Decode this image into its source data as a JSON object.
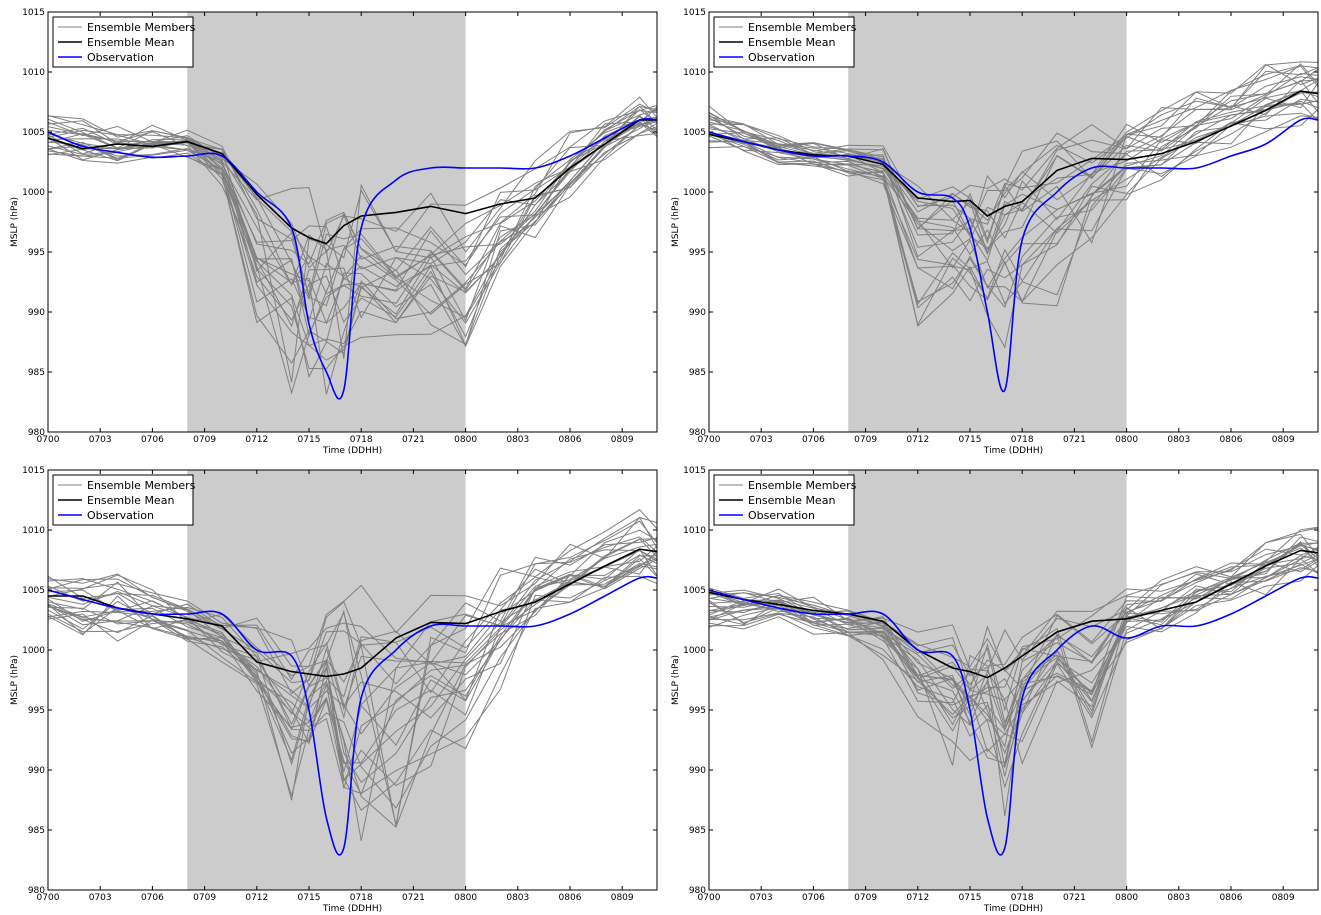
{
  "chart_data": [
    {
      "type": "line",
      "xlabel": "Time (DDHH)",
      "ylabel": "MSLP (hPa)",
      "xlim": [
        0,
        35
      ],
      "ylim": [
        980,
        1015
      ],
      "x_ticks": [
        0,
        3,
        6,
        9,
        12,
        15,
        18,
        21,
        24,
        27,
        30,
        33
      ],
      "x_tick_labels": [
        "0700",
        "0703",
        "0706",
        "0709",
        "0712",
        "0715",
        "0718",
        "0721",
        "0800",
        "0803",
        "0806",
        "0809"
      ],
      "y_ticks": [
        980,
        985,
        990,
        995,
        1000,
        1005,
        1010,
        1015
      ],
      "shaded_x_range": [
        8,
        24
      ],
      "legend_position": "top-left",
      "legend": [
        "Ensemble Members",
        "Ensemble Mean",
        "Observation"
      ],
      "colors": {
        "members": "#808080",
        "mean": "#000000",
        "obs": "#0000ff",
        "shade": "#cccccc"
      },
      "x": [
        0,
        2,
        4,
        6,
        8,
        10,
        12,
        14,
        15,
        16,
        17,
        18,
        20,
        22,
        24,
        26,
        28,
        30,
        32,
        34,
        35
      ],
      "member_range": [
        [
          1002.5,
          1007.5
        ],
        [
          1002,
          1006.5
        ],
        [
          1002,
          1006
        ],
        [
          1002.5,
          1006
        ],
        [
          1002.5,
          1006
        ],
        [
          1000,
          1005
        ],
        [
          988,
          1004
        ],
        [
          983,
          1003
        ],
        [
          982.5,
          1003
        ],
        [
          983,
          1002.5
        ],
        [
          985,
          1003
        ],
        [
          987,
          1003
        ],
        [
          987,
          1002
        ],
        [
          987,
          1002
        ],
        [
          986,
          1001.5
        ],
        [
          992,
          1002
        ],
        [
          995,
          1004
        ],
        [
          999,
          1006
        ],
        [
          1002,
          1007.5
        ],
        [
          1004,
          1008.5
        ],
        [
          1004,
          1008.5
        ]
      ],
      "series": [
        {
          "name": "Ensemble Mean",
          "values": [
            1004.5,
            1003.6,
            1004,
            1003.8,
            1004.2,
            1003.2,
            999.8,
            997,
            996.2,
            995.7,
            997.2,
            998,
            998.3,
            998.8,
            998.2,
            999,
            999.5,
            1002,
            1004,
            1006,
            1006
          ]
        },
        {
          "name": "Observation",
          "values": [
            1005,
            1003.8,
            1003.3,
            1002.9,
            1003,
            1003,
            1000,
            997,
            989,
            985,
            983.5,
            997,
            1001,
            1002,
            1002,
            1002,
            1002,
            1003,
            1004.5,
            1006,
            1006
          ]
        }
      ]
    },
    {
      "type": "line",
      "xlabel": "Time (DDHH)",
      "ylabel": "MSLP (hPa)",
      "xlim": [
        0,
        35
      ],
      "ylim": [
        980,
        1015
      ],
      "x_ticks": [
        0,
        3,
        6,
        9,
        12,
        15,
        18,
        21,
        24,
        27,
        30,
        33
      ],
      "x_tick_labels": [
        "0700",
        "0703",
        "0706",
        "0709",
        "0712",
        "0715",
        "0718",
        "0721",
        "0800",
        "0803",
        "0806",
        "0809"
      ],
      "y_ticks": [
        980,
        985,
        990,
        995,
        1000,
        1005,
        1010,
        1015
      ],
      "shaded_x_range": [
        8,
        24
      ],
      "legend_position": "top-left",
      "legend": [
        "Ensemble Members",
        "Ensemble Mean",
        "Observation"
      ],
      "colors": {
        "members": "#808080",
        "mean": "#000000",
        "obs": "#0000ff",
        "shade": "#cccccc"
      },
      "x": [
        0,
        2,
        4,
        6,
        8,
        10,
        12,
        14,
        15,
        16,
        17,
        18,
        20,
        22,
        24,
        26,
        28,
        30,
        32,
        34,
        35
      ],
      "member_range": [
        [
          1003,
          1007.5
        ],
        [
          1003,
          1006
        ],
        [
          1002,
          1005
        ],
        [
          1001.5,
          1004.5
        ],
        [
          1001,
          1004
        ],
        [
          1000,
          1004
        ],
        [
          988,
          1003
        ],
        [
          990,
          1002
        ],
        [
          990,
          1001
        ],
        [
          988,
          1002
        ],
        [
          987,
          1004
        ],
        [
          988,
          1005
        ],
        [
          989,
          1006
        ],
        [
          995,
          1006
        ],
        [
          999,
          1006.5
        ],
        [
          1000,
          1007.5
        ],
        [
          1002,
          1008.5
        ],
        [
          1003,
          1009.5
        ],
        [
          1004,
          1011
        ],
        [
          1005,
          1011.5
        ],
        [
          1005,
          1011.5
        ]
      ],
      "series": [
        {
          "name": "Ensemble Mean",
          "values": [
            1004.8,
            1004.2,
            1003.5,
            1003.1,
            1003,
            1002.3,
            999.5,
            999.2,
            999.3,
            998,
            998.8,
            999.2,
            1001.8,
            1002.8,
            1002.7,
            1003.2,
            1004.2,
            1005.5,
            1006.8,
            1008.4,
            1008.2
          ]
        },
        {
          "name": "Observation",
          "values": [
            1005,
            1004.2,
            1003.5,
            1003,
            1003,
            1002.5,
            1000,
            999.5,
            997,
            990,
            983.5,
            996,
            1000,
            1002,
            1002,
            1002,
            1002,
            1003,
            1004,
            1006,
            1006
          ]
        }
      ]
    },
    {
      "type": "line",
      "xlabel": "Time (DDHH)",
      "ylabel": "MSLP (hPa)",
      "xlim": [
        0,
        35
      ],
      "ylim": [
        980,
        1015
      ],
      "x_ticks": [
        0,
        3,
        6,
        9,
        12,
        15,
        18,
        21,
        24,
        27,
        30,
        33
      ],
      "x_tick_labels": [
        "0700",
        "0703",
        "0706",
        "0709",
        "0712",
        "0715",
        "0718",
        "0721",
        "0800",
        "0803",
        "0806",
        "0809"
      ],
      "y_ticks": [
        980,
        985,
        990,
        995,
        1000,
        1005,
        1010,
        1015
      ],
      "shaded_x_range": [
        8,
        24
      ],
      "legend_position": "top-left",
      "legend": [
        "Ensemble Members",
        "Ensemble Mean",
        "Observation"
      ],
      "colors": {
        "members": "#808080",
        "mean": "#000000",
        "obs": "#0000ff",
        "shade": "#cccccc"
      },
      "x": [
        0,
        2,
        4,
        6,
        8,
        10,
        12,
        14,
        15,
        16,
        17,
        18,
        20,
        22,
        24,
        26,
        28,
        30,
        32,
        34,
        35
      ],
      "member_range": [
        [
          1002,
          1006.5
        ],
        [
          1000,
          1006.5
        ],
        [
          1000,
          1008
        ],
        [
          1000,
          1006
        ],
        [
          1000,
          1004.5
        ],
        [
          998,
          1004
        ],
        [
          995,
          1003
        ],
        [
          987,
          1003
        ],
        [
          990,
          1002
        ],
        [
          993,
          1003.5
        ],
        [
          985,
          1005
        ],
        [
          983.5,
          1006
        ],
        [
          985,
          1006
        ],
        [
          990,
          1006
        ],
        [
          990.5,
          1006
        ],
        [
          996,
          1007
        ],
        [
          1002,
          1008
        ],
        [
          1003,
          1009
        ],
        [
          1004,
          1010
        ],
        [
          1005,
          1012
        ],
        [
          1005,
          1011
        ]
      ],
      "series": [
        {
          "name": "Ensemble Mean",
          "values": [
            1004.5,
            1004.5,
            1003.5,
            1003,
            1002.6,
            1002,
            999,
            998.2,
            998,
            997.8,
            998,
            998.5,
            1001,
            1002.3,
            1002.2,
            1003.2,
            1004,
            1005.5,
            1007,
            1008.4,
            1008.2
          ]
        },
        {
          "name": "Observation",
          "values": [
            1005,
            1004.2,
            1003.5,
            1003,
            1003,
            1003,
            1000,
            999.5,
            995,
            986,
            983.5,
            996,
            1000,
            1002,
            1002,
            1002,
            1002,
            1003,
            1004.5,
            1006,
            1006
          ]
        }
      ]
    },
    {
      "type": "line",
      "xlabel": "Time (DDHH)",
      "ylabel": "MSLP (hPa)",
      "xlim": [
        0,
        35
      ],
      "ylim": [
        980,
        1015
      ],
      "x_ticks": [
        0,
        3,
        6,
        9,
        12,
        15,
        18,
        21,
        24,
        27,
        30,
        33
      ],
      "x_tick_labels": [
        "0700",
        "0703",
        "0706",
        "0709",
        "0712",
        "0715",
        "0718",
        "0721",
        "0800",
        "0803",
        "0806",
        "0809"
      ],
      "y_ticks": [
        980,
        985,
        990,
        995,
        1000,
        1005,
        1010,
        1015
      ],
      "shaded_x_range": [
        8,
        24
      ],
      "legend_position": "top-left",
      "legend": [
        "Ensemble Members",
        "Ensemble Mean",
        "Observation"
      ],
      "colors": {
        "members": "#808080",
        "mean": "#000000",
        "obs": "#0000ff",
        "shade": "#cccccc"
      },
      "x": [
        0,
        2,
        4,
        6,
        8,
        10,
        12,
        14,
        15,
        16,
        17,
        18,
        20,
        22,
        24,
        26,
        28,
        30,
        32,
        34,
        35
      ],
      "member_range": [
        [
          1001,
          1006
        ],
        [
          1001,
          1006
        ],
        [
          1002,
          1005.5
        ],
        [
          1001,
          1005
        ],
        [
          1000.5,
          1004
        ],
        [
          999,
          1004
        ],
        [
          993,
          1003
        ],
        [
          990,
          1003
        ],
        [
          990,
          1003
        ],
        [
          990,
          1004
        ],
        [
          985.5,
          1004
        ],
        [
          990,
          1004
        ],
        [
          995,
          1005
        ],
        [
          991,
          1005
        ],
        [
          1000,
          1006
        ],
        [
          1000,
          1006.5
        ],
        [
          1002,
          1007.5
        ],
        [
          1003,
          1008.5
        ],
        [
          1004,
          1010
        ],
        [
          1005,
          1011.5
        ],
        [
          1005,
          1011
        ]
      ],
      "series": [
        {
          "name": "Ensemble Mean",
          "values": [
            1004.8,
            1004.2,
            1003.8,
            1003.3,
            1003,
            1002.4,
            1000,
            998.5,
            998.2,
            997.7,
            998.5,
            999.5,
            1001.5,
            1002.4,
            1002.6,
            1003.3,
            1004,
            1005.5,
            1007,
            1008.3,
            1008.1
          ]
        },
        {
          "name": "Observation",
          "values": [
            1005,
            1004.2,
            1003.5,
            1003,
            1003,
            1003,
            1000,
            999.5,
            995,
            986,
            983.5,
            996,
            1000,
            1002,
            1001,
            1002,
            1002,
            1003,
            1004.5,
            1006,
            1006
          ]
        }
      ]
    }
  ]
}
